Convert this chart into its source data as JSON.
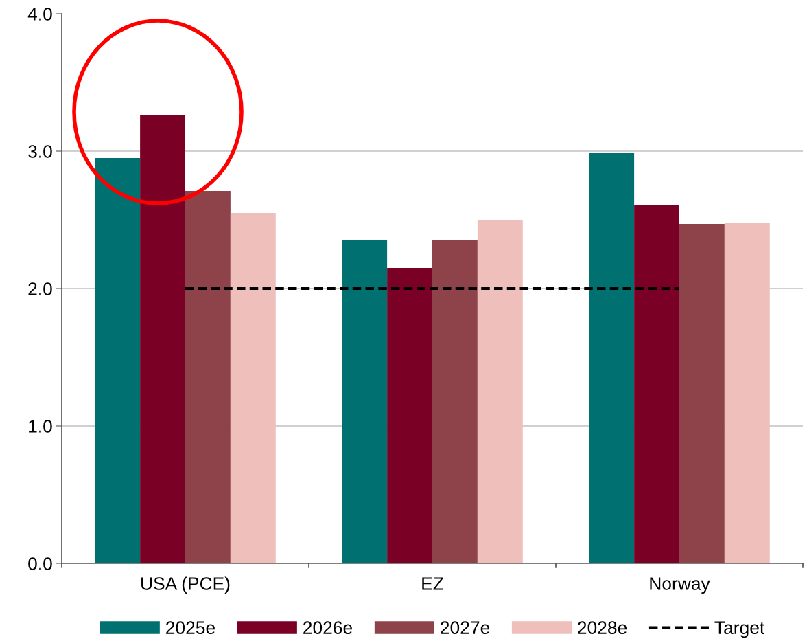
{
  "chart_data": {
    "type": "bar",
    "categories": [
      "USA (PCE)",
      "EZ",
      "Norway"
    ],
    "series": [
      {
        "name": "2025e",
        "color": "#007070",
        "values": [
          2.95,
          2.35,
          2.99
        ]
      },
      {
        "name": "2026e",
        "color": "#7a0026",
        "values": [
          3.26,
          2.15,
          2.61
        ]
      },
      {
        "name": "2027e",
        "color": "#8e434b",
        "values": [
          2.71,
          2.35,
          2.47
        ]
      },
      {
        "name": "2028e",
        "color": "#eebfbb",
        "values": [
          2.55,
          2.5,
          2.48
        ]
      },
      {
        "name": "Target",
        "type": "line",
        "color": "#000000",
        "line_style": "dashed",
        "values": [
          2.0,
          2.0,
          2.0
        ]
      }
    ],
    "ylim": [
      0,
      4
    ],
    "yticks": [
      {
        "value": 0,
        "label": "0.0"
      },
      {
        "value": 1,
        "label": "1.0"
      },
      {
        "value": 2,
        "label": "2.0"
      },
      {
        "value": 3,
        "label": "3.0"
      },
      {
        "value": 4,
        "label": "4.0"
      }
    ],
    "grid": "y",
    "legend": "bottom"
  }
}
